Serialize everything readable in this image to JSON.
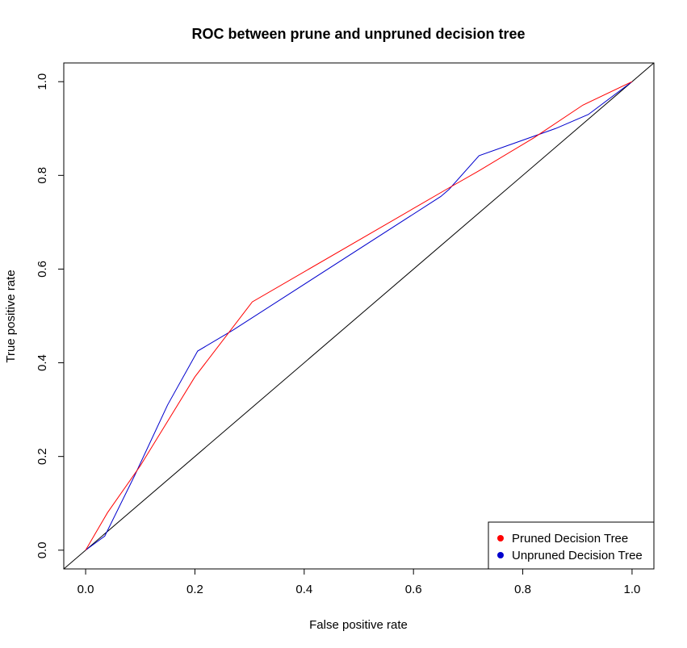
{
  "chart_data": {
    "type": "line",
    "title": "ROC between prune and unpruned decision tree",
    "xlabel": "False positive rate",
    "ylabel": "True positive rate",
    "xlim": [
      -0.04,
      1.04
    ],
    "ylim": [
      -0.04,
      1.04
    ],
    "xticks": [
      0.0,
      0.2,
      0.4,
      0.6,
      0.8,
      1.0
    ],
    "xtick_labels": [
      "0.0",
      "0.2",
      "0.4",
      "0.6",
      "0.8",
      "1.0"
    ],
    "yticks": [
      0.0,
      0.2,
      0.4,
      0.6,
      0.8,
      1.0
    ],
    "ytick_labels": [
      "0.0",
      "0.2",
      "0.4",
      "0.6",
      "0.8",
      "1.0"
    ],
    "grid": false,
    "legend_position": "bottom-right",
    "series": [
      {
        "name": "Pruned Decision Tree",
        "color": "#ff0000",
        "x": [
          0.0,
          0.04,
          0.1,
          0.2,
          0.305,
          0.66,
          0.72,
          0.82,
          0.91,
          1.0
        ],
        "y": [
          0.0,
          0.08,
          0.18,
          0.37,
          0.53,
          0.77,
          0.81,
          0.88,
          0.95,
          1.0
        ]
      },
      {
        "name": "Unpruned Decision Tree",
        "color": "#0000cd",
        "x": [
          0.0,
          0.035,
          0.09,
          0.15,
          0.205,
          0.27,
          0.65,
          0.665,
          0.72,
          0.86,
          0.92,
          1.0
        ],
        "y": [
          0.0,
          0.03,
          0.16,
          0.31,
          0.425,
          0.47,
          0.755,
          0.77,
          0.842,
          0.9,
          0.93,
          1.0
        ]
      },
      {
        "color": "#000000",
        "x": [
          -0.04,
          1.04
        ],
        "y": [
          -0.04,
          1.04
        ]
      }
    ]
  }
}
